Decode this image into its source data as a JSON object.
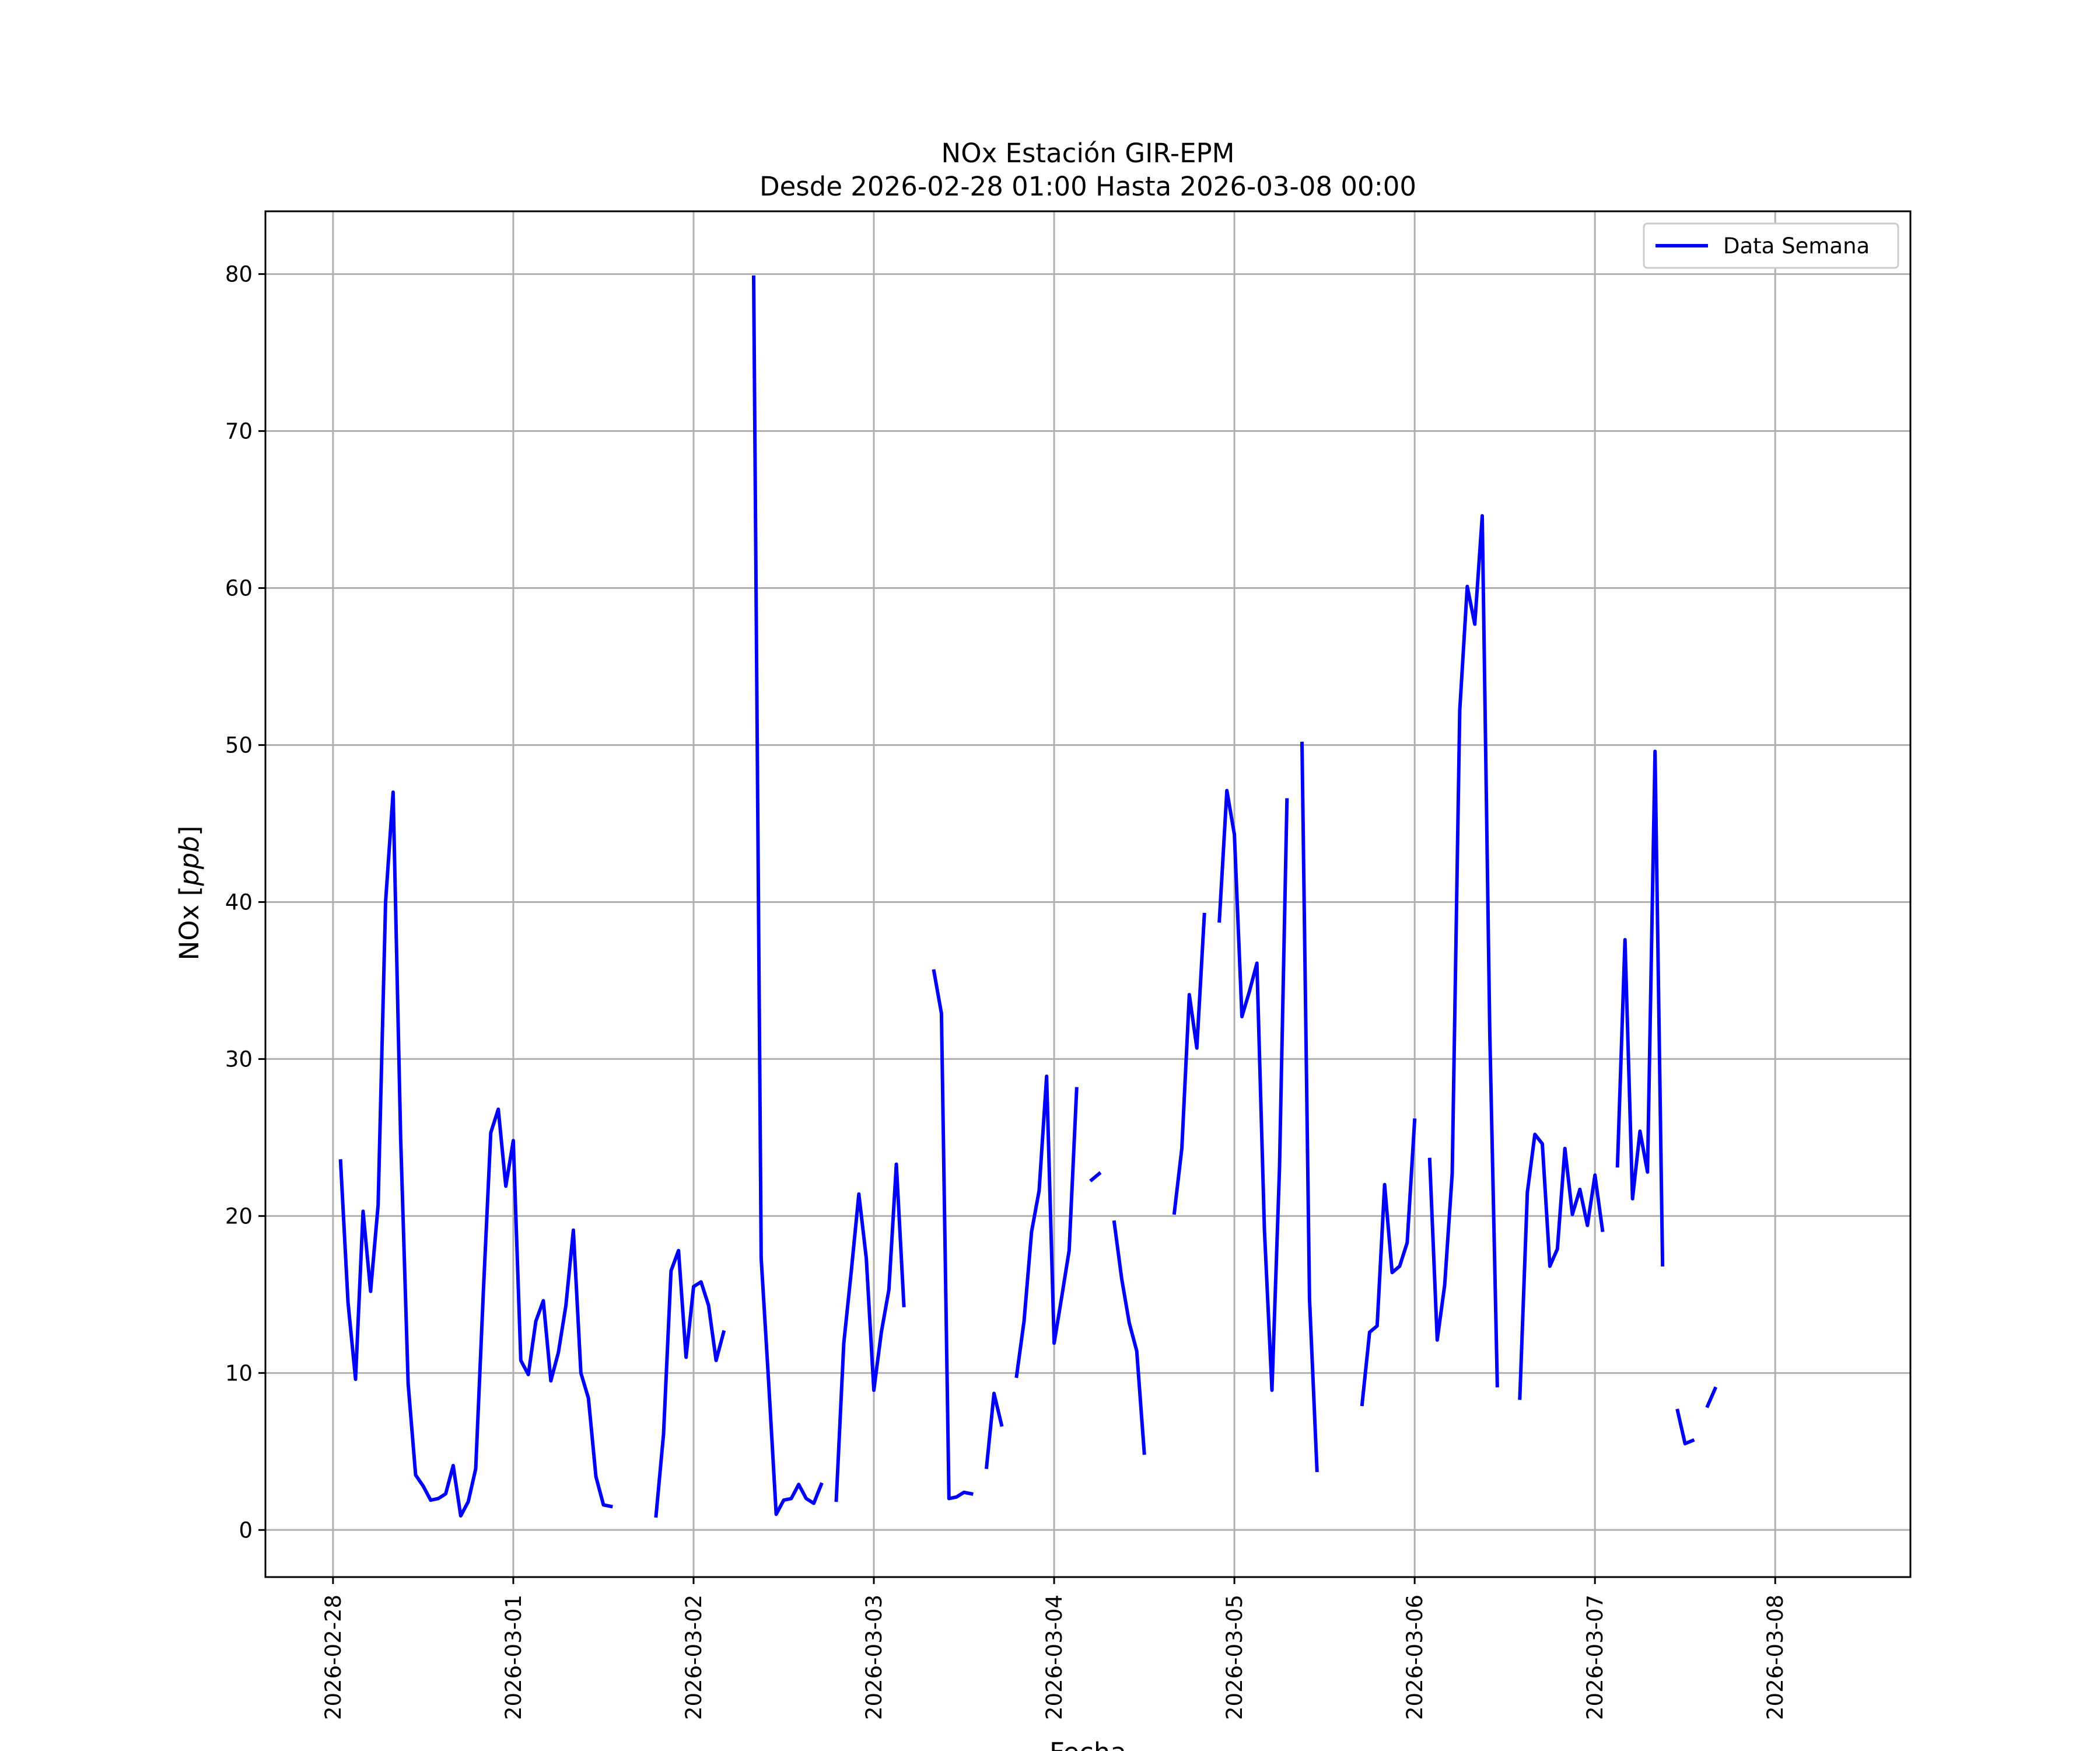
{
  "chart_data": {
    "type": "line",
    "title": "NOx Estación GIR-EPM",
    "subtitle": "Desde 2026-02-28 01:00 Hasta 2026-03-08 00:00",
    "xlabel": "Fecha",
    "ylabel": "NOx [ppb]",
    "ylabel_main": "NOx [",
    "ylabel_unit": "ppb",
    "ylabel_close": "]",
    "xlim": [
      "2026-02-27 15:00",
      "2026-03-08 18:00"
    ],
    "ylim": [
      -3,
      84
    ],
    "x_ticks": [
      "2026-02-28",
      "2026-03-01",
      "2026-03-02",
      "2026-03-03",
      "2026-03-04",
      "2026-03-05",
      "2026-03-06",
      "2026-03-07",
      "2026-03-08"
    ],
    "y_ticks": [
      0,
      10,
      20,
      30,
      40,
      50,
      60,
      70,
      80
    ],
    "grid": true,
    "legend_position": "top-right",
    "series": [
      {
        "name": "Data Semana",
        "color": "#0000ff",
        "segments": [
          [
            [
              "2026-02-28 01:00",
              23.5
            ],
            [
              "2026-02-28 02:00",
              14.5
            ],
            [
              "2026-02-28 03:00",
              9.6
            ],
            [
              "2026-02-28 04:00",
              20.3
            ],
            [
              "2026-02-28 05:00",
              15.2
            ],
            [
              "2026-02-28 06:00",
              20.7
            ],
            [
              "2026-02-28 07:00",
              40.0
            ],
            [
              "2026-02-28 08:00",
              47.0
            ],
            [
              "2026-02-28 09:00",
              25.0
            ],
            [
              "2026-02-28 10:00",
              9.3
            ],
            [
              "2026-02-28 11:00",
              3.5
            ],
            [
              "2026-02-28 12:00",
              2.8
            ],
            [
              "2026-02-28 13:00",
              1.9
            ],
            [
              "2026-02-28 14:00",
              2.0
            ],
            [
              "2026-02-28 15:00",
              2.3
            ],
            [
              "2026-02-28 16:00",
              4.1
            ],
            [
              "2026-02-28 17:00",
              0.9
            ],
            [
              "2026-02-28 18:00",
              1.8
            ],
            [
              "2026-02-28 19:00",
              3.9
            ],
            [
              "2026-02-28 20:00",
              15.0
            ],
            [
              "2026-02-28 21:00",
              25.3
            ],
            [
              "2026-02-28 22:00",
              26.8
            ],
            [
              "2026-02-28 23:00",
              21.9
            ],
            [
              "2026-03-01 00:00",
              24.8
            ],
            [
              "2026-03-01 01:00",
              10.8
            ],
            [
              "2026-03-01 02:00",
              9.9
            ],
            [
              "2026-03-01 03:00",
              13.3
            ],
            [
              "2026-03-01 04:00",
              14.6
            ],
            [
              "2026-03-01 05:00",
              9.5
            ],
            [
              "2026-03-01 06:00",
              11.3
            ],
            [
              "2026-03-01 07:00",
              14.3
            ],
            [
              "2026-03-01 08:00",
              19.1
            ],
            [
              "2026-03-01 09:00",
              10.0
            ],
            [
              "2026-03-01 10:00",
              8.4
            ],
            [
              "2026-03-01 11:00",
              3.4
            ],
            [
              "2026-03-01 12:00",
              1.6
            ],
            [
              "2026-03-01 13:00",
              1.5
            ]
          ],
          [
            [
              "2026-03-01 19:00",
              0.9
            ],
            [
              "2026-03-01 20:00",
              6.1
            ],
            [
              "2026-03-01 21:00",
              16.5
            ],
            [
              "2026-03-01 22:00",
              17.8
            ],
            [
              "2026-03-01 23:00",
              11.0
            ],
            [
              "2026-03-02 00:00",
              15.5
            ],
            [
              "2026-03-02 01:00",
              15.8
            ],
            [
              "2026-03-02 02:00",
              14.3
            ],
            [
              "2026-03-02 03:00",
              10.8
            ],
            [
              "2026-03-02 04:00",
              12.6
            ]
          ],
          [
            [
              "2026-03-02 08:00",
              79.8
            ],
            [
              "2026-03-02 09:00",
              17.3
            ],
            [
              "2026-03-02 10:00",
              9.4
            ],
            [
              "2026-03-02 11:00",
              1.0
            ],
            [
              "2026-03-02 12:00",
              1.9
            ],
            [
              "2026-03-02 13:00",
              2.0
            ],
            [
              "2026-03-02 14:00",
              2.9
            ],
            [
              "2026-03-02 15:00",
              2.0
            ],
            [
              "2026-03-02 16:00",
              1.7
            ],
            [
              "2026-03-02 17:00",
              2.9
            ]
          ],
          [
            [
              "2026-03-02 19:00",
              1.9
            ],
            [
              "2026-03-02 20:00",
              11.9
            ],
            [
              "2026-03-02 21:00",
              16.5
            ],
            [
              "2026-03-02 22:00",
              21.4
            ],
            [
              "2026-03-02 23:00",
              17.3
            ],
            [
              "2026-03-03 00:00",
              8.9
            ],
            [
              "2026-03-03 01:00",
              12.6
            ],
            [
              "2026-03-03 02:00",
              15.3
            ],
            [
              "2026-03-03 03:00",
              23.3
            ],
            [
              "2026-03-03 04:00",
              14.3
            ]
          ],
          [
            [
              "2026-03-03 08:00",
              35.6
            ],
            [
              "2026-03-03 09:00",
              32.9
            ],
            [
              "2026-03-03 10:00",
              2.0
            ],
            [
              "2026-03-03 11:00",
              2.1
            ],
            [
              "2026-03-03 12:00",
              2.4
            ],
            [
              "2026-03-03 13:00",
              2.3
            ]
          ],
          [
            [
              "2026-03-03 15:00",
              4.0
            ],
            [
              "2026-03-03 16:00",
              8.7
            ],
            [
              "2026-03-03 17:00",
              6.7
            ]
          ],
          [
            [
              "2026-03-03 19:00",
              9.8
            ],
            [
              "2026-03-03 20:00",
              13.3
            ],
            [
              "2026-03-03 21:00",
              19.0
            ],
            [
              "2026-03-03 22:00",
              21.6
            ],
            [
              "2026-03-03 23:00",
              28.9
            ],
            [
              "2026-03-04 00:00",
              11.9
            ],
            [
              "2026-03-04 01:00",
              14.8
            ],
            [
              "2026-03-04 02:00",
              17.8
            ],
            [
              "2026-03-04 03:00",
              28.1
            ]
          ],
          [
            [
              "2026-03-04 05:00",
              22.3
            ],
            [
              "2026-03-04 06:00",
              22.7
            ]
          ],
          [
            [
              "2026-03-04 08:00",
              19.6
            ],
            [
              "2026-03-04 09:00",
              16.0
            ],
            [
              "2026-03-04 10:00",
              13.2
            ],
            [
              "2026-03-04 11:00",
              11.4
            ],
            [
              "2026-03-04 12:00",
              4.9
            ]
          ],
          [
            [
              "2026-03-04 16:00",
              20.2
            ],
            [
              "2026-03-04 17:00",
              24.3
            ],
            [
              "2026-03-04 18:00",
              34.1
            ],
            [
              "2026-03-04 19:00",
              30.7
            ],
            [
              "2026-03-04 20:00",
              39.2
            ]
          ],
          [
            [
              "2026-03-04 22:00",
              38.8
            ],
            [
              "2026-03-04 23:00",
              47.1
            ],
            [
              "2026-03-05 00:00",
              44.3
            ],
            [
              "2026-03-05 01:00",
              32.7
            ],
            [
              "2026-03-05 02:00",
              34.3
            ],
            [
              "2026-03-05 03:00",
              36.1
            ],
            [
              "2026-03-05 04:00",
              19.1
            ],
            [
              "2026-03-05 05:00",
              8.9
            ],
            [
              "2026-03-05 06:00",
              23.0
            ],
            [
              "2026-03-05 07:00",
              46.5
            ]
          ],
          [
            [
              "2026-03-05 09:00",
              50.1
            ],
            [
              "2026-03-05 10:00",
              14.7
            ],
            [
              "2026-03-05 11:00",
              3.8
            ]
          ],
          [
            [
              "2026-03-05 17:00",
              8.0
            ],
            [
              "2026-03-05 18:00",
              12.6
            ],
            [
              "2026-03-05 19:00",
              13.0
            ],
            [
              "2026-03-05 20:00",
              22.0
            ],
            [
              "2026-03-05 21:00",
              16.4
            ],
            [
              "2026-03-05 22:00",
              16.8
            ],
            [
              "2026-03-05 23:00",
              18.3
            ],
            [
              "2026-03-06 00:00",
              26.1
            ]
          ],
          [
            [
              "2026-03-06 02:00",
              23.6
            ],
            [
              "2026-03-06 03:00",
              12.1
            ],
            [
              "2026-03-06 04:00",
              15.6
            ],
            [
              "2026-03-06 05:00",
              22.7
            ],
            [
              "2026-03-06 06:00",
              52.2
            ],
            [
              "2026-03-06 07:00",
              60.1
            ],
            [
              "2026-03-06 08:00",
              57.7
            ],
            [
              "2026-03-06 09:00",
              64.6
            ],
            [
              "2026-03-06 10:00",
              31.7
            ],
            [
              "2026-03-06 11:00",
              9.2
            ]
          ],
          [
            [
              "2026-03-06 14:00",
              8.4
            ],
            [
              "2026-03-06 15:00",
              21.5
            ],
            [
              "2026-03-06 16:00",
              25.2
            ],
            [
              "2026-03-06 17:00",
              24.6
            ],
            [
              "2026-03-06 18:00",
              16.8
            ],
            [
              "2026-03-06 19:00",
              17.9
            ],
            [
              "2026-03-06 20:00",
              24.3
            ],
            [
              "2026-03-06 21:00",
              20.1
            ],
            [
              "2026-03-06 22:00",
              21.7
            ],
            [
              "2026-03-06 23:00",
              19.4
            ],
            [
              "2026-03-07 00:00",
              22.6
            ],
            [
              "2026-03-07 01:00",
              19.1
            ]
          ],
          [
            [
              "2026-03-07 03:00",
              23.2
            ],
            [
              "2026-03-07 04:00",
              37.6
            ],
            [
              "2026-03-07 05:00",
              21.1
            ],
            [
              "2026-03-07 06:00",
              25.4
            ],
            [
              "2026-03-07 07:00",
              22.8
            ],
            [
              "2026-03-07 08:00",
              49.6
            ],
            [
              "2026-03-07 09:00",
              16.9
            ]
          ],
          [
            [
              "2026-03-07 11:00",
              7.6
            ],
            [
              "2026-03-07 12:00",
              5.5
            ],
            [
              "2026-03-07 13:00",
              5.7
            ]
          ],
          [
            [
              "2026-03-07 15:00",
              7.9
            ],
            [
              "2026-03-07 16:00",
              9.0
            ]
          ]
        ]
      }
    ]
  }
}
